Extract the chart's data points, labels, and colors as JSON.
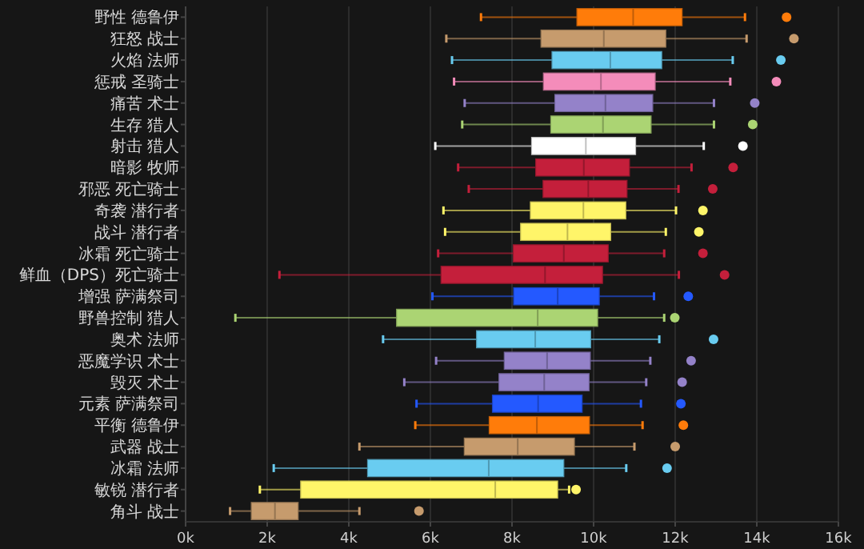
{
  "chart_data": {
    "type": "box",
    "orientation": "horizontal",
    "grid": "x",
    "categories": [
      "野性 德鲁伊",
      "狂怒 战士",
      "火焰 法师",
      "惩戒 圣骑士",
      "痛苦 术士",
      "生存 猎人",
      "射击 猎人",
      "暗影 牧师",
      "邪恶 死亡骑士",
      "奇袭 潜行者",
      "战斗 潜行者",
      "冰霜 死亡骑士",
      "鲜血（DPS）死亡骑士",
      "增强 萨满祭司",
      "野兽控制 猎人",
      "奥术 法师",
      "恶魔学识 术士",
      "毁灭 术士",
      "元素 萨满祭司",
      "平衡 德鲁伊",
      "武器 战士",
      "冰霜 法师",
      "敏锐 潜行者",
      "角斗 战士"
    ],
    "colors": [
      "#ff7c0a",
      "#c69b6d",
      "#69ccf0",
      "#f48cba",
      "#9482c9",
      "#abd473",
      "#ffffff",
      "#c41f3b",
      "#c41f3b",
      "#fff569",
      "#fff569",
      "#c41f3b",
      "#c41f3b",
      "#2459ff",
      "#abd473",
      "#69ccf0",
      "#9482c9",
      "#9482c9",
      "#2459ff",
      "#ff7c0a",
      "#c69b6d",
      "#69ccf0",
      "#fff569",
      "#c69b6d"
    ],
    "boxes": [
      {
        "low": 7240,
        "q1": 9590,
        "median": 10970,
        "q3": 12170,
        "high": 13710,
        "outliers": [
          14730
        ]
      },
      {
        "low": 6390,
        "q1": 8710,
        "median": 10250,
        "q3": 11770,
        "high": 13750,
        "outliers": [
          14910
        ]
      },
      {
        "low": 6530,
        "q1": 8980,
        "median": 10410,
        "q3": 11670,
        "high": 13410,
        "outliers": [
          14590
        ]
      },
      {
        "low": 6580,
        "q1": 8770,
        "median": 10180,
        "q3": 11510,
        "high": 13350,
        "outliers": [
          14480
        ]
      },
      {
        "low": 6840,
        "q1": 9050,
        "median": 10290,
        "q3": 11450,
        "high": 12950,
        "outliers": [
          13950
        ]
      },
      {
        "low": 6780,
        "q1": 8950,
        "median": 10230,
        "q3": 11410,
        "high": 12950,
        "outliers": [
          13900
        ]
      },
      {
        "low": 6120,
        "q1": 8480,
        "median": 9810,
        "q3": 11030,
        "high": 12700,
        "outliers": [
          13660
        ]
      },
      {
        "low": 6680,
        "q1": 8580,
        "median": 9760,
        "q3": 10880,
        "high": 12400,
        "outliers": [
          13420
        ]
      },
      {
        "low": 6940,
        "q1": 8760,
        "median": 9870,
        "q3": 10820,
        "high": 12080,
        "outliers": [
          12920
        ]
      },
      {
        "low": 6320,
        "q1": 8450,
        "median": 9750,
        "q3": 10790,
        "high": 12020,
        "outliers": [
          12680
        ]
      },
      {
        "low": 6360,
        "q1": 8210,
        "median": 9360,
        "q3": 10420,
        "high": 11770,
        "outliers": [
          12580
        ]
      },
      {
        "low": 6190,
        "q1": 8030,
        "median": 9270,
        "q3": 10360,
        "high": 11730,
        "outliers": [
          12680
        ]
      },
      {
        "low": 2300,
        "q1": 6260,
        "median": 8810,
        "q3": 10220,
        "high": 12090,
        "outliers": [
          13210
        ]
      },
      {
        "low": 6050,
        "q1": 8040,
        "median": 9120,
        "q3": 10140,
        "high": 11480,
        "outliers": [
          12320
        ]
      },
      {
        "low": 1220,
        "q1": 5170,
        "median": 8630,
        "q3": 10100,
        "high": 11730,
        "outliers": [
          11990
        ]
      },
      {
        "low": 4840,
        "q1": 7130,
        "median": 8570,
        "q3": 9930,
        "high": 11610,
        "outliers": [
          12940
        ]
      },
      {
        "low": 6140,
        "q1": 7810,
        "median": 8860,
        "q3": 9920,
        "high": 11390,
        "outliers": [
          12390
        ]
      },
      {
        "low": 5360,
        "q1": 7680,
        "median": 8790,
        "q3": 9890,
        "high": 11290,
        "outliers": [
          12170
        ]
      },
      {
        "low": 5660,
        "q1": 7520,
        "median": 8640,
        "q3": 9720,
        "high": 11160,
        "outliers": [
          12140
        ]
      },
      {
        "low": 5630,
        "q1": 7440,
        "median": 8610,
        "q3": 9900,
        "high": 11200,
        "outliers": [
          12200
        ]
      },
      {
        "low": 4260,
        "q1": 6830,
        "median": 8140,
        "q3": 9530,
        "high": 11000,
        "outliers": [
          12000
        ]
      },
      {
        "low": 2160,
        "q1": 4460,
        "median": 7430,
        "q3": 9270,
        "high": 10800,
        "outliers": [
          11800
        ]
      },
      {
        "low": 1820,
        "q1": 2820,
        "median": 7590,
        "q3": 9120,
        "high": 9400,
        "outliers": [
          9570
        ]
      },
      {
        "low": 1090,
        "q1": 1610,
        "median": 2190,
        "q3": 2760,
        "high": 4260,
        "outliers": [
          5720
        ]
      }
    ],
    "xlim": [
      0,
      16000
    ],
    "xticks": [
      {
        "value": 0,
        "label": "0k"
      },
      {
        "value": 2000,
        "label": "2k"
      },
      {
        "value": 4000,
        "label": "4k"
      },
      {
        "value": 6000,
        "label": "6k"
      },
      {
        "value": 8000,
        "label": "8k"
      },
      {
        "value": 10000,
        "label": "10k"
      },
      {
        "value": 12000,
        "label": "12k"
      },
      {
        "value": 14000,
        "label": "14k"
      },
      {
        "value": 16000,
        "label": "16k"
      }
    ]
  }
}
